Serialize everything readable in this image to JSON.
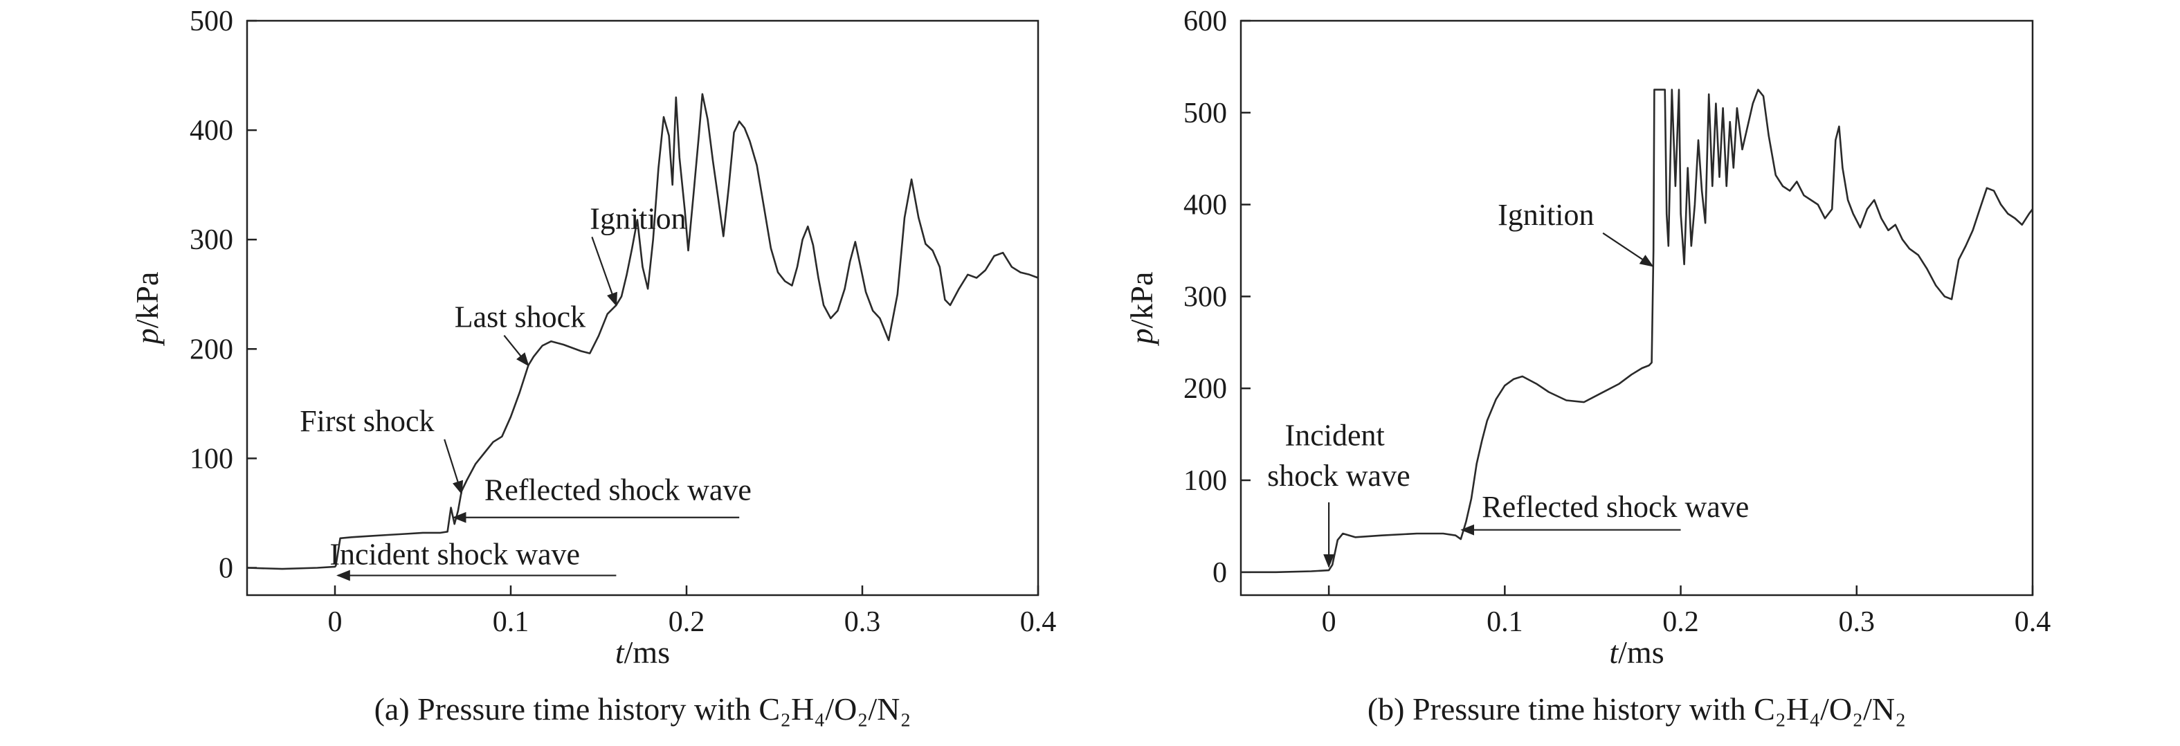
{
  "chart_data": [
    {
      "type": "line",
      "caption": "(a) Pressure time history with C₂H₄/O₂/N₂",
      "xlabel_italic": "t",
      "xlabel_unit": "/ms",
      "ylabel_italic": "p",
      "ylabel_unit": "/kPa",
      "xlim": [
        -0.05,
        0.4
      ],
      "ylim": [
        -25,
        500
      ],
      "xticks": [
        0,
        0.1,
        0.2,
        0.3,
        0.4
      ],
      "xtick_labels": [
        "0",
        "0.1",
        "0.2",
        "0.3",
        "0.4"
      ],
      "yticks": [
        0,
        100,
        200,
        300,
        400,
        500
      ],
      "ytick_labels": [
        "0",
        "100",
        "200",
        "300",
        "400",
        "500"
      ],
      "grid": false,
      "series": [
        {
          "points": [
            [
              -0.05,
              0
            ],
            [
              -0.03,
              -1
            ],
            [
              -0.01,
              0
            ],
            [
              0.0,
              1
            ],
            [
              0.0005,
              2
            ],
            [
              0.003,
              27
            ],
            [
              0.01,
              28
            ],
            [
              0.02,
              29
            ],
            [
              0.03,
              30
            ],
            [
              0.04,
              31
            ],
            [
              0.05,
              32
            ],
            [
              0.06,
              32
            ],
            [
              0.064,
              33
            ],
            [
              0.066,
              55
            ],
            [
              0.068,
              40
            ],
            [
              0.07,
              52
            ],
            [
              0.072,
              70
            ],
            [
              0.075,
              80
            ],
            [
              0.08,
              95
            ],
            [
              0.085,
              105
            ],
            [
              0.09,
              115
            ],
            [
              0.095,
              120
            ],
            [
              0.1,
              138
            ],
            [
              0.105,
              160
            ],
            [
              0.11,
              185
            ],
            [
              0.113,
              193
            ],
            [
              0.118,
              203
            ],
            [
              0.123,
              207
            ],
            [
              0.13,
              204
            ],
            [
              0.14,
              198
            ],
            [
              0.145,
              196
            ],
            [
              0.15,
              212
            ],
            [
              0.155,
              232
            ],
            [
              0.16,
              240
            ],
            [
              0.163,
              248
            ],
            [
              0.166,
              268
            ],
            [
              0.169,
              292
            ],
            [
              0.172,
              318
            ],
            [
              0.175,
              275
            ],
            [
              0.178,
              255
            ],
            [
              0.181,
              300
            ],
            [
              0.184,
              365
            ],
            [
              0.187,
              412
            ],
            [
              0.19,
              395
            ],
            [
              0.192,
              350
            ],
            [
              0.194,
              430
            ],
            [
              0.196,
              375
            ],
            [
              0.199,
              327
            ],
            [
              0.201,
              290
            ],
            [
              0.204,
              342
            ],
            [
              0.207,
              395
            ],
            [
              0.209,
              433
            ],
            [
              0.212,
              410
            ],
            [
              0.215,
              372
            ],
            [
              0.218,
              338
            ],
            [
              0.221,
              303
            ],
            [
              0.224,
              348
            ],
            [
              0.227,
              398
            ],
            [
              0.23,
              408
            ],
            [
              0.233,
              402
            ],
            [
              0.236,
              390
            ],
            [
              0.24,
              368
            ],
            [
              0.244,
              330
            ],
            [
              0.248,
              292
            ],
            [
              0.252,
              270
            ],
            [
              0.256,
              262
            ],
            [
              0.26,
              258
            ],
            [
              0.263,
              275
            ],
            [
              0.266,
              300
            ],
            [
              0.269,
              312
            ],
            [
              0.272,
              295
            ],
            [
              0.275,
              265
            ],
            [
              0.278,
              240
            ],
            [
              0.282,
              228
            ],
            [
              0.286,
              235
            ],
            [
              0.29,
              255
            ],
            [
              0.293,
              280
            ],
            [
              0.296,
              298
            ],
            [
              0.299,
              275
            ],
            [
              0.302,
              252
            ],
            [
              0.306,
              235
            ],
            [
              0.31,
              228
            ],
            [
              0.315,
              208
            ],
            [
              0.32,
              250
            ],
            [
              0.324,
              320
            ],
            [
              0.328,
              355
            ],
            [
              0.332,
              320
            ],
            [
              0.336,
              296
            ],
            [
              0.34,
              290
            ],
            [
              0.344,
              275
            ],
            [
              0.347,
              245
            ],
            [
              0.35,
              240
            ],
            [
              0.355,
              255
            ],
            [
              0.36,
              268
            ],
            [
              0.365,
              265
            ],
            [
              0.37,
              272
            ],
            [
              0.375,
              285
            ],
            [
              0.38,
              288
            ],
            [
              0.385,
              275
            ],
            [
              0.39,
              270
            ],
            [
              0.395,
              268
            ],
            [
              0.4,
              265
            ]
          ]
        }
      ],
      "annotations": [
        {
          "text": "Ignition",
          "label_x": 0.145,
          "label_y": 310,
          "arrow_to_x": 0.16,
          "arrow_to_y": 240,
          "kind": "diagonal"
        },
        {
          "text": "Last shock",
          "label_x": 0.068,
          "label_y": 220,
          "arrow_to_x": 0.11,
          "arrow_to_y": 185,
          "kind": "diagonal"
        },
        {
          "text": "First shock",
          "label_x": -0.02,
          "label_y": 125,
          "arrow_to_x": 0.072,
          "arrow_to_y": 68,
          "kind": "diagonal"
        },
        {
          "text": "Reflected shock wave",
          "label_x": 0.085,
          "label_y": 62,
          "line_from_x": 0.23,
          "line_y": 46,
          "arrow_to_x": 0.066,
          "kind": "horizontal"
        },
        {
          "text": "Incident shock wave",
          "label_x": -0.003,
          "label_y": 3,
          "line_from_x": 0.16,
          "line_y": -7,
          "arrow_to_x": 0.0,
          "kind": "horizontal"
        }
      ]
    },
    {
      "type": "line",
      "caption": "(b) Pressure time history with C₂H₄/O₂/N₂",
      "xlabel_italic": "t",
      "xlabel_unit": "/ms",
      "ylabel_italic": "p",
      "ylabel_unit": "/kPa",
      "xlim": [
        -0.05,
        0.4
      ],
      "ylim": [
        -25,
        600
      ],
      "xticks": [
        0,
        0.1,
        0.2,
        0.3,
        0.4
      ],
      "xtick_labels": [
        "0",
        "0.1",
        "0.2",
        "0.3",
        "0.4"
      ],
      "yticks": [
        0,
        100,
        200,
        300,
        400,
        500,
        600
      ],
      "ytick_labels": [
        "0",
        "100",
        "200",
        "300",
        "400",
        "500",
        "600"
      ],
      "grid": false,
      "series": [
        {
          "points": [
            [
              -0.05,
              0
            ],
            [
              -0.03,
              0
            ],
            [
              -0.01,
              1
            ],
            [
              0.0,
              2
            ],
            [
              0.002,
              8
            ],
            [
              0.005,
              35
            ],
            [
              0.008,
              42
            ],
            [
              0.015,
              38
            ],
            [
              0.03,
              40
            ],
            [
              0.05,
              42
            ],
            [
              0.065,
              42
            ],
            [
              0.072,
              40
            ],
            [
              0.075,
              36
            ],
            [
              0.078,
              55
            ],
            [
              0.081,
              80
            ],
            [
              0.084,
              118
            ],
            [
              0.087,
              143
            ],
            [
              0.09,
              165
            ],
            [
              0.095,
              188
            ],
            [
              0.1,
              203
            ],
            [
              0.105,
              210
            ],
            [
              0.11,
              213
            ],
            [
              0.118,
              205
            ],
            [
              0.125,
              196
            ],
            [
              0.135,
              187
            ],
            [
              0.145,
              185
            ],
            [
              0.155,
              195
            ],
            [
              0.165,
              205
            ],
            [
              0.172,
              215
            ],
            [
              0.178,
              222
            ],
            [
              0.182,
              225
            ],
            [
              0.1835,
              228
            ],
            [
              0.1845,
              350
            ],
            [
              0.185,
              525
            ],
            [
              0.19,
              525
            ],
            [
              0.191,
              525
            ],
            [
              0.192,
              390
            ],
            [
              0.193,
              355
            ],
            [
              0.195,
              525
            ],
            [
              0.197,
              420
            ],
            [
              0.199,
              525
            ],
            [
              0.2,
              390
            ],
            [
              0.202,
              335
            ],
            [
              0.204,
              440
            ],
            [
              0.206,
              355
            ],
            [
              0.208,
              400
            ],
            [
              0.21,
              470
            ],
            [
              0.212,
              415
            ],
            [
              0.214,
              380
            ],
            [
              0.216,
              520
            ],
            [
              0.218,
              420
            ],
            [
              0.22,
              510
            ],
            [
              0.222,
              430
            ],
            [
              0.224,
              505
            ],
            [
              0.226,
              420
            ],
            [
              0.228,
              490
            ],
            [
              0.23,
              440
            ],
            [
              0.232,
              505
            ],
            [
              0.235,
              460
            ],
            [
              0.238,
              485
            ],
            [
              0.241,
              510
            ],
            [
              0.244,
              525
            ],
            [
              0.247,
              518
            ],
            [
              0.25,
              475
            ],
            [
              0.254,
              432
            ],
            [
              0.258,
              420
            ],
            [
              0.262,
              415
            ],
            [
              0.266,
              425
            ],
            [
              0.27,
              410
            ],
            [
              0.274,
              405
            ],
            [
              0.278,
              400
            ],
            [
              0.282,
              385
            ],
            [
              0.286,
              395
            ],
            [
              0.288,
              470
            ],
            [
              0.29,
              485
            ],
            [
              0.292,
              440
            ],
            [
              0.295,
              405
            ],
            [
              0.298,
              390
            ],
            [
              0.302,
              375
            ],
            [
              0.306,
              395
            ],
            [
              0.31,
              405
            ],
            [
              0.314,
              385
            ],
            [
              0.318,
              372
            ],
            [
              0.322,
              378
            ],
            [
              0.326,
              362
            ],
            [
              0.33,
              352
            ],
            [
              0.335,
              345
            ],
            [
              0.34,
              330
            ],
            [
              0.345,
              312
            ],
            [
              0.35,
              300
            ],
            [
              0.354,
              297
            ],
            [
              0.358,
              340
            ],
            [
              0.362,
              355
            ],
            [
              0.366,
              372
            ],
            [
              0.37,
              395
            ],
            [
              0.374,
              418
            ],
            [
              0.378,
              415
            ],
            [
              0.382,
              400
            ],
            [
              0.386,
              390
            ],
            [
              0.39,
              385
            ],
            [
              0.394,
              378
            ],
            [
              0.398,
              390
            ],
            [
              0.4,
              395
            ]
          ]
        }
      ],
      "annotations": [
        {
          "text": "Ignition",
          "label_x": 0.096,
          "label_y": 378,
          "arrow_to_x": 0.184,
          "arrow_to_y": 333,
          "kind": "diagonal"
        },
        {
          "text": "Incident",
          "label_x": -0.025,
          "label_y": 138,
          "kind": "text"
        },
        {
          "text": "shock wave",
          "label_x": -0.035,
          "label_y": 94,
          "arrow_from_x": 0.0,
          "arrow_from_y": 76,
          "arrow_to_x": 0.0,
          "arrow_to_y": 6,
          "kind": "vertical"
        },
        {
          "text": "Reflected shock wave",
          "label_x": 0.087,
          "label_y": 60,
          "line_from_x": 0.2,
          "line_y": 46,
          "arrow_to_x": 0.074,
          "kind": "horizontal"
        }
      ]
    }
  ]
}
